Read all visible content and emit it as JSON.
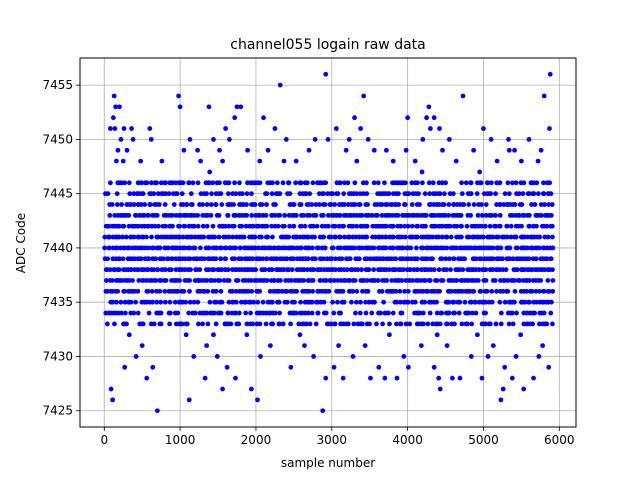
{
  "chart_data": {
    "type": "scatter",
    "title": "channel055 logain raw data",
    "xlabel": "sample number",
    "ylabel": "ADC Code",
    "xlim": [
      -320,
      6220
    ],
    "ylim": [
      7423.5,
      7457.5
    ],
    "xticks": [
      0,
      1000,
      2000,
      3000,
      4000,
      5000,
      6000
    ],
    "yticks": [
      7425,
      7430,
      7435,
      7440,
      7445,
      7450,
      7455
    ],
    "grid": true,
    "marker_color": "#0000ff",
    "series": [
      {
        "x": [
          110,
          700,
          1120,
          2020,
          2880,
          5230,
          2320,
          2920,
          5880,
          130,
          980,
          3420,
          4730,
          5800,
          150,
          200,
          1000,
          1380,
          1750,
          1800,
          4280,
          120,
          1720,
          2100,
          3300,
          4000,
          4250,
          4350,
          80,
          140,
          260,
          360,
          600,
          1600,
          2250,
          3060,
          3380,
          4300,
          4420,
          5000,
          5870,
          220,
          380,
          620,
          1130,
          1440,
          1650,
          2400,
          2780,
          2950,
          3230,
          3480,
          4200,
          4550,
          5100,
          5330,
          5600,
          180,
          300,
          1050,
          1230,
          1520,
          1890,
          2160,
          2700,
          3190,
          3560,
          3720,
          3980,
          4460,
          4870,
          5340,
          5410,
          5760,
          160,
          250,
          480,
          760,
          1270,
          1560,
          2050,
          2370,
          2530,
          3330,
          3810,
          4100,
          4640,
          5180,
          5500,
          5720,
          90,
          1560,
          1940,
          4430,
          5530,
          5260,
          4590,
          2920,
          3150,
          560,
          1330,
          1730,
          3510,
          3700,
          3860,
          4410,
          4690,
          4980,
          5380,
          5660,
          270,
          640,
          1620,
          2460,
          3030,
          3620,
          4010,
          4350,
          5280,
          5860,
          420,
          1180,
          1490,
          2060,
          2760,
          3280,
          3950,
          4840,
          5060,
          5430,
          5730,
          500,
          1350,
          2190,
          2640,
          3090,
          3440,
          4180,
          4520,
          5130,
          5780,
          330,
          1080,
          1440,
          1880,
          2580,
          3760,
          4390,
          4920,
          5490,
          620,
          1010,
          2310,
          2990,
          3670,
          4770,
          5580,
          730,
          1200,
          1780,
          2490,
          3910,
          4620,
          1390,
          4190,
          4950
        ],
        "y": [
          7426,
          7425,
          7426,
          7426,
          7425,
          7426,
          7455,
          7456,
          7456,
          7454,
          7454,
          7454,
          7454,
          7454,
          7453,
          7453,
          7453,
          7453,
          7453,
          7453,
          7453,
          7452,
          7452,
          7452,
          7452,
          7452,
          7452,
          7452,
          7451,
          7451,
          7451,
          7451,
          7451,
          7451,
          7451,
          7451,
          7451,
          7451,
          7451,
          7451,
          7451,
          7450,
          7450,
          7450,
          7450,
          7450,
          7450,
          7450,
          7450,
          7450,
          7450,
          7450,
          7450,
          7450,
          7450,
          7450,
          7450,
          7449,
          7449,
          7449,
          7449,
          7449,
          7449,
          7449,
          7449,
          7449,
          7449,
          7449,
          7449,
          7449,
          7449,
          7449,
          7449,
          7449,
          7448,
          7448,
          7448,
          7448,
          7448,
          7448,
          7448,
          7448,
          7448,
          7448,
          7448,
          7448,
          7448,
          7448,
          7448,
          7448,
          7427,
          7427,
          7427,
          7427,
          7427,
          7427,
          7428,
          7428,
          7428,
          7428,
          7428,
          7428,
          7428,
          7428,
          7428,
          7428,
          7428,
          7428,
          7428,
          7428,
          7429,
          7429,
          7429,
          7429,
          7429,
          7429,
          7429,
          7429,
          7429,
          7429,
          7430,
          7430,
          7430,
          7430,
          7430,
          7430,
          7430,
          7430,
          7430,
          7430,
          7430,
          7431,
          7431,
          7431,
          7431,
          7431,
          7431,
          7431,
          7431,
          7431,
          7431,
          7432,
          7432,
          7432,
          7432,
          7432,
          7432,
          7432,
          7432,
          7432,
          7433,
          7433,
          7433,
          7433,
          7433,
          7433,
          7433,
          7434,
          7434,
          7434,
          7434,
          7434,
          7434,
          7447,
          7447,
          7447
        ]
      }
    ],
    "dense_band": {
      "x_start": 0,
      "x_end": 5900,
      "y_min": 7433,
      "y_max": 7446
    }
  }
}
